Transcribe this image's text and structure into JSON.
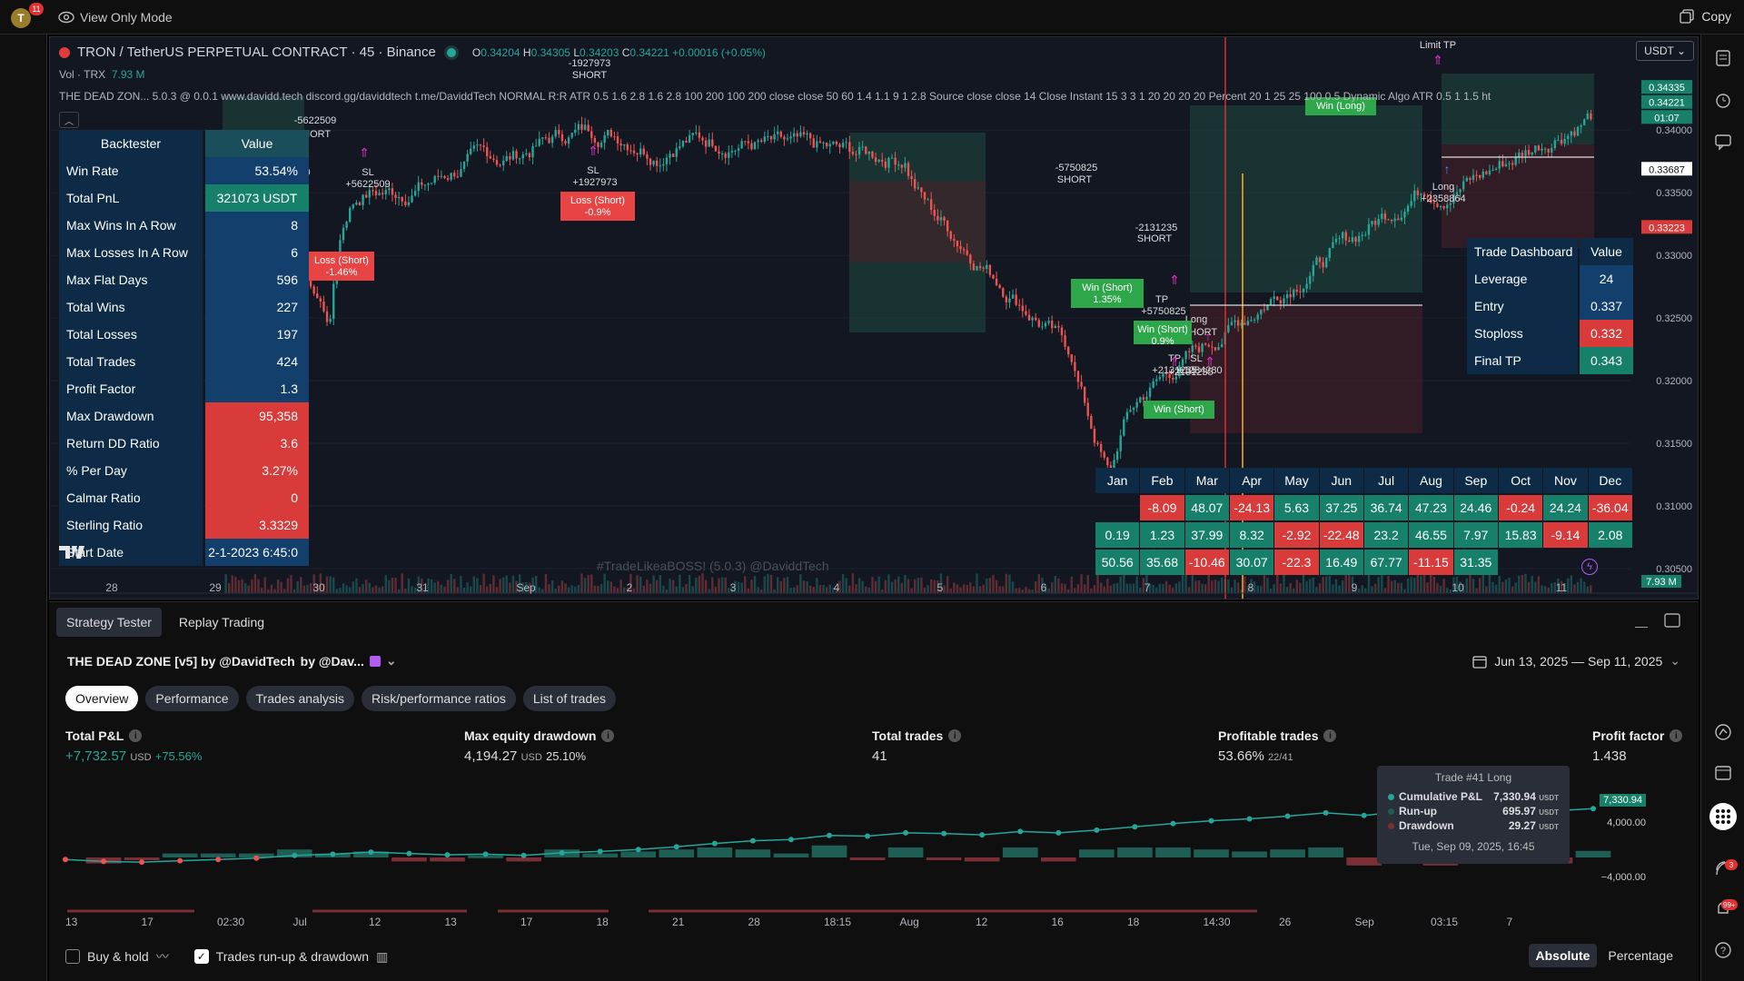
{
  "topbar": {
    "avatar_letter": "T",
    "avatar_badge": "11",
    "view_only": "View Only Mode",
    "copy_label": "Copy"
  },
  "chart": {
    "symbol_title": "TRON / TetherUS PERPETUAL CONTRACT · 45 · Binance",
    "ohlc": {
      "o_label": "O",
      "o": "0.34204",
      "h_label": "H",
      "h": "0.34305",
      "l_label": "L",
      "l": "0.34203",
      "c_label": "C",
      "c": "0.34221",
      "change": "+0.00016 (+0.05%)"
    },
    "vol_label": "Vol · TRX",
    "vol_value": "7.93 M",
    "study_line": "THE DEAD ZON...   5.0.3 @ 0.0.1 www.davidd.tech discord.gg/daviddtech t.me/DaviddTech NORMAL R:R ATR 0.5 1.6 2.8 1.6 2.8 100 200 100 200 close close 50 60 1.4 1.1 9 1 2.8 Source close close 14 Close Instant 15 3 3 1 20 20 20 20 Percent 20 1 25 25 100 0.5 Dynamic Algo ATR 0.5 1 1.5 ht",
    "currency": "USDT",
    "watermark": "#TradeLikeaBOSS! (5.0.3) @DaviddTech",
    "price_ticks": [
      "0.34000",
      "0.33500",
      "0.33000",
      "0.32500",
      "0.32000",
      "0.31500",
      "0.31000",
      "0.30500"
    ],
    "price_labels": {
      "top": "0.34335",
      "last": "0.34221",
      "countdown": "01:07",
      "entry": "0.33687",
      "stop": "0.33223",
      "vol": "7.93 M"
    },
    "time_ticks": [
      "28",
      "29",
      "30",
      "31",
      "Sep",
      "2",
      "3",
      "4",
      "5",
      "6",
      "7",
      "8",
      "9",
      "10",
      "11"
    ],
    "annotations": [
      {
        "text": "-5622509"
      },
      {
        "text": "SHORT"
      },
      {
        "text": "TP"
      },
      {
        "text": "+2054180"
      },
      {
        "text": "SL"
      },
      {
        "text": "+5622509"
      },
      {
        "text": "-1927973"
      },
      {
        "text": "SHORT"
      },
      {
        "text": "SL"
      },
      {
        "text": "+1927973"
      },
      {
        "text": "-5750825"
      },
      {
        "text": "SHORT"
      },
      {
        "text": "-2131235"
      },
      {
        "text": "SHORT"
      },
      {
        "text": "TP"
      },
      {
        "text": "+5750825"
      },
      {
        "text": "Long"
      },
      {
        "text": "+2131235"
      },
      {
        "text": "SHORT"
      },
      {
        "text": "TP"
      },
      {
        "text": "SL"
      },
      {
        "text": "+2131235"
      },
      {
        "text": "+1284280"
      },
      {
        "text": "Limit TP"
      },
      {
        "text": "Long"
      },
      {
        "text": "+2358864"
      }
    ],
    "tags": [
      {
        "text": "Loss (Short)",
        "sub": "-1.46%"
      },
      {
        "text": "Loss (Short)",
        "sub": "-0.9%"
      },
      {
        "text": "Win (Short)",
        "sub": "1.35%"
      },
      {
        "text": "Win (Short)",
        "sub": "0.9%"
      },
      {
        "text": "Win (Short)",
        "sub": ""
      },
      {
        "text": "Win (Long)",
        "sub": ""
      }
    ]
  },
  "backtester": {
    "header": {
      "label": "Backtester",
      "value": "Value"
    },
    "rows": [
      {
        "label": "Win Rate",
        "value": "53.54%",
        "color": "blue"
      },
      {
        "label": "Total PnL",
        "value": "321073 USDT",
        "color": "teal"
      },
      {
        "label": "Max Wins In A Row",
        "value": "8",
        "color": "blue"
      },
      {
        "label": "Max Losses In A Row",
        "value": "6",
        "color": "blue"
      },
      {
        "label": "Max Flat Days",
        "value": "596",
        "color": "blue"
      },
      {
        "label": "Total Wins",
        "value": "227",
        "color": "blue"
      },
      {
        "label": "Total Losses",
        "value": "197",
        "color": "blue"
      },
      {
        "label": "Total Trades",
        "value": "424",
        "color": "blue"
      },
      {
        "label": "Profit Factor",
        "value": "1.3",
        "color": "blue"
      },
      {
        "label": "Max Drawdown",
        "value": "95,358",
        "color": "red"
      },
      {
        "label": "Return DD Ratio",
        "value": "3.6",
        "color": "red"
      },
      {
        "label": "% Per Day",
        "value": "3.27%",
        "color": "red"
      },
      {
        "label": "Calmar Ratio",
        "value": "0",
        "color": "red"
      },
      {
        "label": "Sterling Ratio",
        "value": "3.3329",
        "color": "red"
      },
      {
        "label": "Start Date",
        "value": "2-1-2023 6:45:0",
        "color": "blue"
      }
    ]
  },
  "dashboard": {
    "header": {
      "label": "Trade Dashboard",
      "value": "Value"
    },
    "rows": [
      {
        "label": "Leverage",
        "value": "24",
        "color": "blue"
      },
      {
        "label": "Entry",
        "value": "0.337",
        "color": "blue"
      },
      {
        "label": "Stoploss",
        "value": "0.332",
        "color": "red"
      },
      {
        "label": "Final TP",
        "value": "0.343",
        "color": "teal"
      }
    ]
  },
  "monthly": {
    "months": [
      "Jan",
      "Feb",
      "Mar",
      "Apr",
      "May",
      "Jun",
      "Jul",
      "Aug",
      "Sep",
      "Oct",
      "Nov",
      "Dec"
    ],
    "rows": [
      [
        "",
        "-8.09",
        "48.07",
        "-24.13",
        "5.63",
        "37.25",
        "36.74",
        "47.23",
        "24.46",
        "-0.24",
        "24.24",
        "-36.04"
      ],
      [
        "0.19",
        "1.23",
        "37.99",
        "8.32",
        "-2.92",
        "-22.48",
        "23.2",
        "46.55",
        "7.97",
        "15.83",
        "-9.14",
        "2.08"
      ],
      [
        "50.56",
        "35.68",
        "-10.46",
        "30.07",
        "-22.3",
        "16.49",
        "67.77",
        "-11.15",
        "31.35",
        "",
        "",
        ""
      ]
    ]
  },
  "panel": {
    "tabs": [
      "Strategy Tester",
      "Replay Trading"
    ],
    "strategy_name": "THE DEAD ZONE [v5] by @DavidTech",
    "strategy_by": "by @Dav...",
    "date_range": "Jun 13, 2025 — Sep 11, 2025",
    "subtabs": [
      "Overview",
      "Performance",
      "Trades analysis",
      "Risk/performance ratios",
      "List of trades"
    ],
    "metrics": {
      "pnl": {
        "title": "Total P&L",
        "value": "+7,732.57",
        "unit": "USD",
        "pct": "+75.56%"
      },
      "dd": {
        "title": "Max equity drawdown",
        "value": "4,194.27",
        "unit": "USD",
        "pct": "25.10%"
      },
      "trades": {
        "title": "Total trades",
        "value": "41"
      },
      "profitable": {
        "title": "Profitable trades",
        "value": "53.66%",
        "sub": "22/41"
      },
      "pf": {
        "title": "Profit factor",
        "value": "1.438"
      }
    },
    "tooltip": {
      "title": "Trade #41 Long",
      "rows": [
        {
          "label": "Cumulative P&L",
          "value": "7,330.94",
          "unit": "USDT",
          "color": "#26a69a"
        },
        {
          "label": "Run-up",
          "value": "695.97",
          "unit": "USDT",
          "color": "#1f5e55"
        },
        {
          "label": "Drawdown",
          "value": "29.27",
          "unit": "USDT",
          "color": "#7a2f35"
        }
      ],
      "date": "Tue, Sep 09, 2025, 16:45"
    },
    "equity_axis": {
      "current": "7,330.94",
      "upper": "4,000.00",
      "lower": "−4,000.00"
    },
    "x_ticks": [
      "13",
      "17",
      "02:30",
      "Jul",
      "12",
      "13",
      "17",
      "18",
      "21",
      "28",
      "18:15",
      "Aug",
      "12",
      "16",
      "18",
      "14:30",
      "26",
      "Sep",
      "03:15",
      "7"
    ],
    "buy_hold": "Buy & hold",
    "runup_dd": "Trades run-up & drawdown",
    "absolute": "Absolute",
    "percentage": "Percentage"
  },
  "colors": {
    "up": "#26a69a",
    "down": "#ef5350",
    "bg": "#131722",
    "blue_cell": "#123f6c",
    "teal_cell": "#17806a",
    "red_cell": "#d93a3a"
  },
  "chart_data": {
    "type": "bar",
    "title": "",
    "series": [
      {
        "name": "Cumulative P&L",
        "values": [
          -300,
          -600,
          -700,
          -500,
          -300,
          -100,
          300,
          500,
          800,
          600,
          400,
          500,
          300,
          700,
          900,
          1200,
          1600,
          2100,
          2500,
          2700,
          3300,
          3200,
          3700,
          3600,
          3400,
          3900,
          3700,
          4100,
          4600,
          5100,
          5500,
          5800,
          6200,
          6700,
          6300,
          6900,
          6500,
          7100,
          7300,
          7000,
          7330.94
        ]
      }
    ],
    "ylim": [
      -6000,
      9000
    ]
  }
}
